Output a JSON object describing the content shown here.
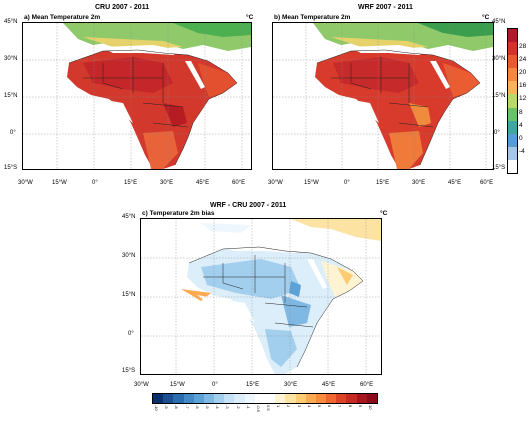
{
  "panel_a": {
    "header": "CRU 2007 - 2011",
    "title": "a) Mean Temperature 2m",
    "unit": "°C"
  },
  "panel_b": {
    "header": "WRF 2007 - 2011",
    "title": "b) Mean Temperature 2m",
    "unit": "°C"
  },
  "panel_c": {
    "header": "WRF - CRU 2007 - 2011",
    "title": "c) Temperature 2m bias",
    "unit": "°C"
  },
  "axes": {
    "lon_labels": [
      "30°W",
      "15°W",
      "0°",
      "15°E",
      "30°E",
      "45°E",
      "60°E"
    ],
    "lat_labels": [
      "45°N",
      "30°N",
      "15°N",
      "0°",
      "15°S"
    ]
  },
  "colorbar_temp": {
    "labels": [
      "28",
      "24",
      "20",
      "16",
      "12",
      "8",
      "4",
      "0",
      "-4"
    ],
    "colors": [
      "#b2182b",
      "#d6302a",
      "#ea5a32",
      "#f5873f",
      "#f9b45b",
      "#b8d86b",
      "#6cc06b",
      "#3fa6a2",
      "#5b9bd5",
      "#a5c8ea",
      "#ffffff"
    ]
  },
  "colorbar_bias": {
    "labels": [
      "-10",
      "-9",
      "-8",
      "-7",
      "-6",
      "-5",
      "-4",
      "-3",
      "-2",
      "-1",
      "-0.5",
      "0.5",
      "1",
      "2",
      "3",
      "4",
      "5",
      "6",
      "7",
      "8",
      "9",
      "10"
    ],
    "colors": [
      "#08306b",
      "#1b4f91",
      "#2c6db0",
      "#4289c6",
      "#5da2d6",
      "#7fb9e3",
      "#a3cfee",
      "#c4e1f5",
      "#dceefa",
      "#eef7fd",
      "#ffffff",
      "#ffffff",
      "#fef3d2",
      "#fde3a3",
      "#fdcb74",
      "#fcaa52",
      "#f98b3d",
      "#ef6630",
      "#dd4426",
      "#c72a21",
      "#a8161d",
      "#8a0b19"
    ]
  }
}
